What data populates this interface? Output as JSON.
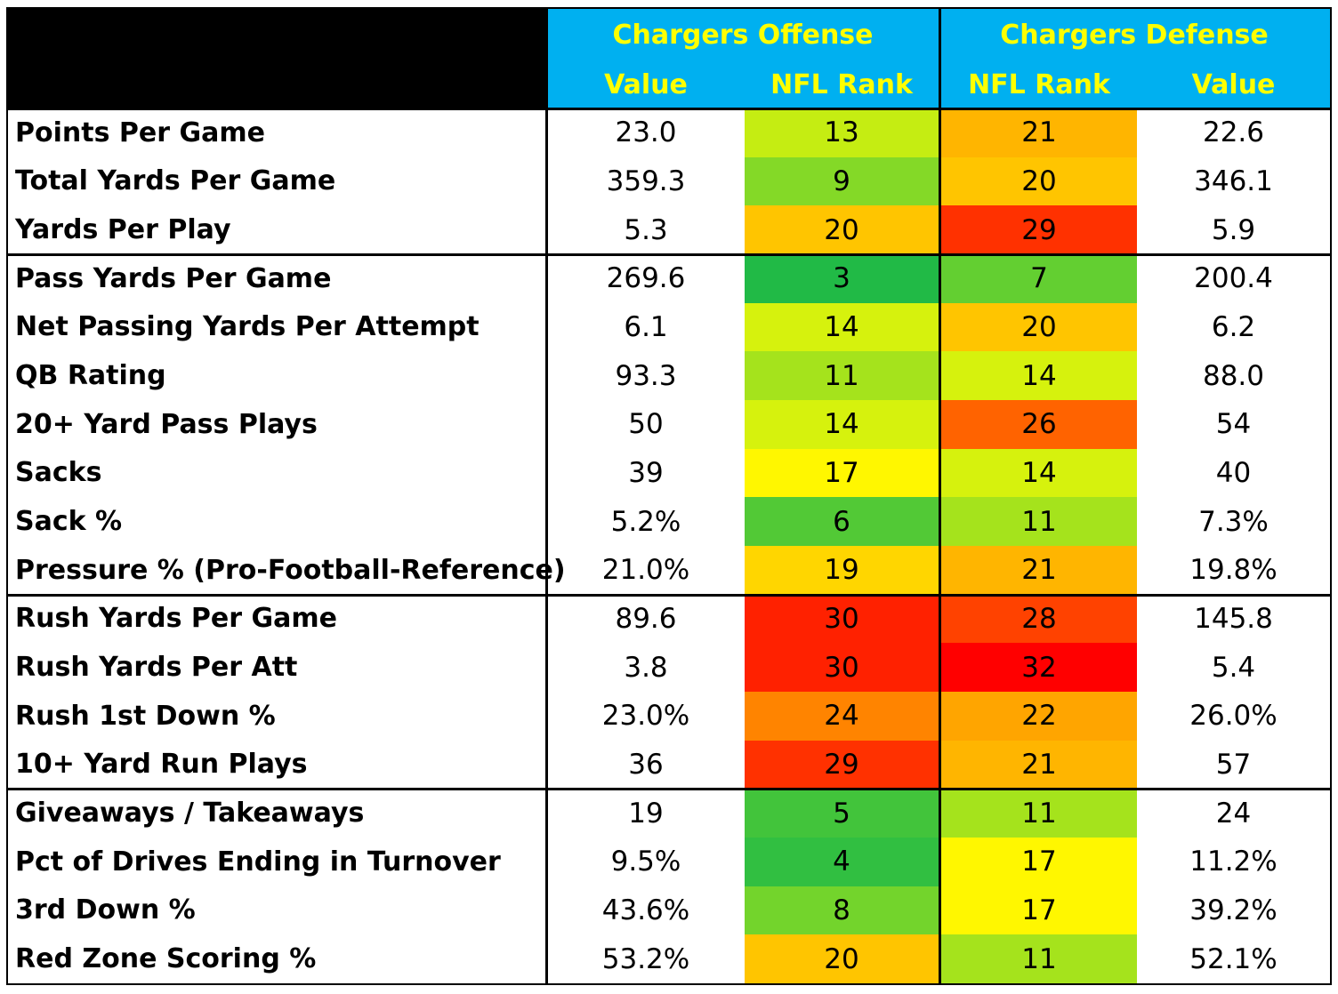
{
  "header": {
    "offense_title": "Chargers Offense",
    "defense_title": "Chargers Defense",
    "offense_value": "Value",
    "offense_rank": "NFL Rank",
    "defense_rank": "NFL Rank",
    "defense_value": "Value"
  },
  "chart_data": {
    "type": "table",
    "columns": [
      "",
      "Chargers Offense Value",
      "Chargers Offense NFL Rank",
      "Chargers Defense NFL Rank",
      "Chargers Defense Value"
    ],
    "rows": [
      {
        "stat": "Points Per Game",
        "off_value": "23.0",
        "off_rank": 13,
        "def_rank": 21,
        "def_value": "22.6"
      },
      {
        "stat": "Total Yards Per Game",
        "off_value": "359.3",
        "off_rank": 9,
        "def_rank": 20,
        "def_value": "346.1"
      },
      {
        "stat": "Yards Per Play",
        "off_value": "5.3",
        "off_rank": 20,
        "def_rank": 29,
        "def_value": "5.9"
      },
      {
        "stat": "Pass Yards Per Game",
        "off_value": "269.6",
        "off_rank": 3,
        "def_rank": 7,
        "def_value": "200.4"
      },
      {
        "stat": "Net Passing Yards Per Attempt",
        "off_value": "6.1",
        "off_rank": 14,
        "def_rank": 20,
        "def_value": "6.2"
      },
      {
        "stat": "QB Rating",
        "off_value": "93.3",
        "off_rank": 11,
        "def_rank": 14,
        "def_value": "88.0"
      },
      {
        "stat": "20+ Yard Pass Plays",
        "off_value": "50",
        "off_rank": 14,
        "def_rank": 26,
        "def_value": "54"
      },
      {
        "stat": "Sacks",
        "off_value": "39",
        "off_rank": 17,
        "def_rank": 14,
        "def_value": "40"
      },
      {
        "stat": "Sack %",
        "off_value": "5.2%",
        "off_rank": 6,
        "def_rank": 11,
        "def_value": "7.3%"
      },
      {
        "stat": "Pressure % (Pro-Football-Reference)",
        "off_value": "21.0%",
        "off_rank": 19,
        "def_rank": 21,
        "def_value": "19.8%"
      },
      {
        "stat": "Rush Yards Per Game",
        "off_value": "89.6",
        "off_rank": 30,
        "def_rank": 28,
        "def_value": "145.8"
      },
      {
        "stat": "Rush Yards Per Att",
        "off_value": "3.8",
        "off_rank": 30,
        "def_rank": 32,
        "def_value": "5.4"
      },
      {
        "stat": "Rush 1st Down %",
        "off_value": "23.0%",
        "off_rank": 24,
        "def_rank": 22,
        "def_value": "26.0%"
      },
      {
        "stat": "10+ Yard Run Plays",
        "off_value": "36",
        "off_rank": 29,
        "def_rank": 21,
        "def_value": "57"
      },
      {
        "stat": "Giveaways / Takeaways",
        "off_value": "19",
        "off_rank": 5,
        "def_rank": 11,
        "def_value": "24"
      },
      {
        "stat": "Pct of Drives Ending in Turnover",
        "off_value": "9.5%",
        "off_rank": 4,
        "def_rank": 17,
        "def_value": "11.2%"
      },
      {
        "stat": "3rd Down %",
        "off_value": "43.6%",
        "off_rank": 8,
        "def_rank": 17,
        "def_value": "39.2%"
      },
      {
        "stat": "Red Zone Scoring %",
        "off_value": "53.2%",
        "off_rank": 20,
        "def_rank": 11,
        "def_value": "52.1%"
      }
    ],
    "groups": [
      [
        0,
        2
      ],
      [
        3,
        9
      ],
      [
        10,
        13
      ],
      [
        14,
        17
      ]
    ],
    "colors": {
      "header_fill": "#00b0f0",
      "header_text": "#ffff00",
      "rank_best": "#00b050",
      "rank_mid": "#ffff00",
      "rank_worst": "#ff0000"
    }
  }
}
